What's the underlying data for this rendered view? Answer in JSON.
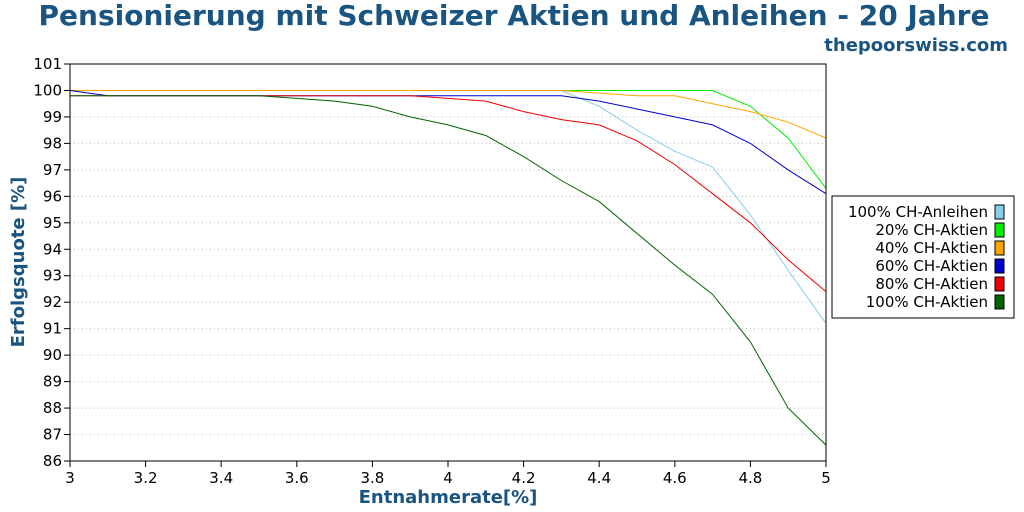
{
  "colors": {
    "title": "#1a5480",
    "axis": "#000000",
    "grid": "#bbbbbb"
  },
  "chart_data": {
    "type": "line",
    "title": "Pensionierung mit Schweizer Aktien und Anleihen - 20 Jahre",
    "subtitle": "thepoorswiss.com",
    "xlabel": "Entnahmerate[%]",
    "ylabel": "Erfolgsquote [%]",
    "xlim": [
      3,
      5
    ],
    "ylim": [
      86,
      101
    ],
    "xticks": [
      3,
      3.2,
      3.4,
      3.6,
      3.8,
      4,
      4.2,
      4.4,
      4.6,
      4.8,
      5
    ],
    "xtick_labels": [
      "3",
      "3.2",
      "3.4",
      "3.6",
      "3.8",
      "4",
      "4.2",
      "4.4",
      "4.6",
      "4.8",
      "5"
    ],
    "yticks": [
      86,
      87,
      88,
      89,
      90,
      91,
      92,
      93,
      94,
      95,
      96,
      97,
      98,
      99,
      100,
      101
    ],
    "ytick_labels": [
      "86",
      "87",
      "88",
      "89",
      "90",
      "91",
      "92",
      "93",
      "94",
      "95",
      "96",
      "97",
      "98",
      "99",
      "100",
      "101"
    ],
    "grid": "horizontal dotted",
    "legend_position": "right",
    "x": [
      3.0,
      3.1,
      3.2,
      3.3,
      3.4,
      3.5,
      3.6,
      3.7,
      3.8,
      3.9,
      4.0,
      4.1,
      4.2,
      4.3,
      4.4,
      4.5,
      4.6,
      4.7,
      4.8,
      4.9,
      5.0
    ],
    "series": [
      {
        "name": "100% CH-Anleihen",
        "color": "#87ceeb",
        "values": [
          100,
          100,
          100,
          100,
          100,
          100,
          100,
          100,
          100,
          100,
          100,
          100,
          100,
          100,
          99.4,
          98.5,
          97.7,
          97.1,
          95.3,
          93.2,
          91.2
        ]
      },
      {
        "name": "20% CH-Aktien",
        "color": "#00ee00",
        "values": [
          100,
          100,
          100,
          100,
          100,
          100,
          100,
          100,
          100,
          100,
          100,
          100,
          100,
          100,
          100,
          100,
          100,
          100,
          99.4,
          98.2,
          96.3
        ]
      },
      {
        "name": "40% CH-Aktien",
        "color": "#ffa500",
        "values": [
          100,
          100,
          100,
          100,
          100,
          100,
          100,
          100,
          100,
          100,
          100,
          100,
          100,
          100,
          99.9,
          99.8,
          99.8,
          99.5,
          99.2,
          98.8,
          98.2
        ]
      },
      {
        "name": "60% CH-Aktien",
        "color": "#0000cc",
        "values": [
          100,
          99.8,
          99.8,
          99.8,
          99.8,
          99.8,
          99.8,
          99.8,
          99.8,
          99.8,
          99.8,
          99.8,
          99.8,
          99.8,
          99.6,
          99.3,
          99.0,
          98.7,
          98.0,
          97.0,
          96.1
        ]
      },
      {
        "name": "80% CH-Aktien",
        "color": "#ee0000",
        "values": [
          99.8,
          99.8,
          99.8,
          99.8,
          99.8,
          99.8,
          99.8,
          99.8,
          99.8,
          99.8,
          99.7,
          99.6,
          99.2,
          98.9,
          98.7,
          98.1,
          97.2,
          96.1,
          95.0,
          93.6,
          92.4
        ]
      },
      {
        "name": "100% CH-Aktien",
        "color": "#006400",
        "values": [
          99.8,
          99.8,
          99.8,
          99.8,
          99.8,
          99.8,
          99.7,
          99.6,
          99.4,
          99.0,
          98.7,
          98.3,
          97.5,
          96.6,
          95.8,
          94.6,
          93.4,
          92.3,
          90.5,
          88.0,
          86.6
        ]
      }
    ]
  }
}
